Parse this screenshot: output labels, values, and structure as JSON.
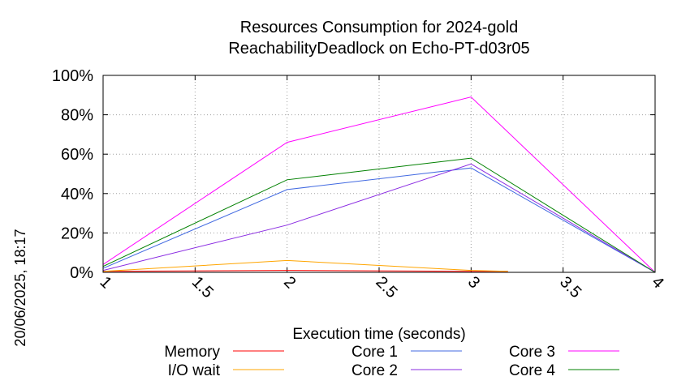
{
  "chart_data": {
    "type": "line",
    "title_line1": "Resources Consumption for 2024-gold",
    "title_line2": "ReachabilityDeadlock on Echo-PT-d03r05",
    "xlabel": "Execution time (seconds)",
    "ylabel": "",
    "side_label": "20/06/2025, 18:17",
    "xlim": [
      1,
      4
    ],
    "ylim": [
      0,
      100
    ],
    "x_ticks": [
      "1",
      "1.5",
      "2",
      "2.5",
      "3",
      "3.5",
      "4"
    ],
    "y_ticks": [
      "0%",
      "20%",
      "40%",
      "60%",
      "80%",
      "100%"
    ],
    "grid": true,
    "legend_position": "bottom",
    "series": [
      {
        "name": "Memory",
        "color": "#ff0000",
        "x": [
          1,
          2,
          3,
          3.2
        ],
        "y": [
          0.5,
          1,
          0.5,
          0.5
        ]
      },
      {
        "name": "I/O wait",
        "color": "#ffa500",
        "x": [
          1,
          2,
          3,
          3.2
        ],
        "y": [
          0.5,
          6,
          1,
          0.5
        ]
      },
      {
        "name": "Core 1",
        "color": "#4169e1",
        "x": [
          1,
          2,
          3,
          4
        ],
        "y": [
          2,
          42,
          53,
          0
        ]
      },
      {
        "name": "Core 2",
        "color": "#8a2be2",
        "x": [
          1,
          2,
          3,
          4
        ],
        "y": [
          1,
          24,
          55,
          0
        ]
      },
      {
        "name": "Core 3",
        "color": "#ff00ff",
        "x": [
          1,
          2,
          3,
          4
        ],
        "y": [
          4,
          66,
          89,
          0
        ]
      },
      {
        "name": "Core 4",
        "color": "#008000",
        "x": [
          1,
          2,
          3,
          4
        ],
        "y": [
          3,
          47,
          58,
          0
        ]
      }
    ]
  }
}
